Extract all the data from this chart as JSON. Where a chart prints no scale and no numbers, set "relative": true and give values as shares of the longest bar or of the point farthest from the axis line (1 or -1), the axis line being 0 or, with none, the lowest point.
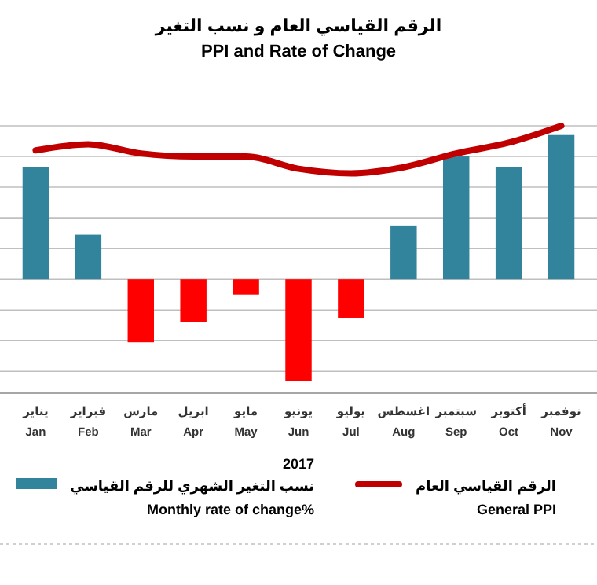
{
  "chart_data": {
    "type": "bar",
    "title": "الرقم القياسي العام و نسب التغير",
    "subtitle": "PPI and Rate of Change",
    "xlabel": "2017",
    "relative": true,
    "grid": "y",
    "legend": "bottom",
    "categories": [
      "يناير\nJan",
      "فبراير\nFeb",
      "مارس\nMar",
      "ابريل\nApr",
      "مايو\nMay",
      "يونيو\nJun",
      "يوليو\nJul",
      "اغسطس\nAug",
      "سبتمبر\nSep",
      "أكتوبر\nOct",
      "نوفمبر\nNov"
    ],
    "series": [
      {
        "name": "نسب التغير الشهري للرقم القياسي\nMonthly rate of change%",
        "type": "bar",
        "color": "#31849b",
        "colors": [
          "#31849b",
          "#31849b",
          "#ff0000",
          "#ff0000",
          "#ff0000",
          "#ff0000",
          "#ff0000",
          "#31849b",
          "#31849b",
          "#31849b",
          "#31849b"
        ],
        "values": [
          0.73,
          0.29,
          -0.41,
          -0.28,
          -0.1,
          -0.66,
          -0.25,
          0.35,
          0.8,
          0.73,
          0.94
        ]
      },
      {
        "name": "الرقم القياسي العام\nGeneral  PPI",
        "type": "line",
        "color": "#c00000",
        "values": [
          0.84,
          0.88,
          0.82,
          0.8,
          0.8,
          0.72,
          0.69,
          0.73,
          0.82,
          0.89,
          1
        ]
      }
    ]
  }
}
